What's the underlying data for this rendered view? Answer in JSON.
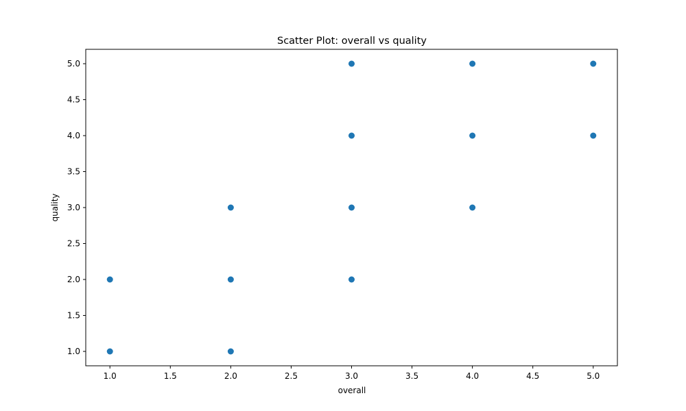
{
  "chart_data": {
    "type": "scatter",
    "title": "Scatter Plot: overall vs quality",
    "xlabel": "overall",
    "ylabel": "quality",
    "xlim": [
      0.8,
      5.2
    ],
    "ylim": [
      0.8,
      5.2
    ],
    "xticks": [
      "1.0",
      "1.5",
      "2.0",
      "2.5",
      "3.0",
      "3.5",
      "4.0",
      "4.5",
      "5.0"
    ],
    "yticks": [
      "1.0",
      "1.5",
      "2.0",
      "2.5",
      "3.0",
      "3.5",
      "4.0",
      "4.5",
      "5.0"
    ],
    "grid": false,
    "marker_color": "#1f77b4",
    "points": [
      {
        "x": 1,
        "y": 1
      },
      {
        "x": 1,
        "y": 2
      },
      {
        "x": 2,
        "y": 1
      },
      {
        "x": 2,
        "y": 2
      },
      {
        "x": 2,
        "y": 3
      },
      {
        "x": 3,
        "y": 2
      },
      {
        "x": 3,
        "y": 3
      },
      {
        "x": 3,
        "y": 4
      },
      {
        "x": 3,
        "y": 5
      },
      {
        "x": 4,
        "y": 3
      },
      {
        "x": 4,
        "y": 4
      },
      {
        "x": 4,
        "y": 5
      },
      {
        "x": 5,
        "y": 4
      },
      {
        "x": 5,
        "y": 5
      }
    ]
  }
}
